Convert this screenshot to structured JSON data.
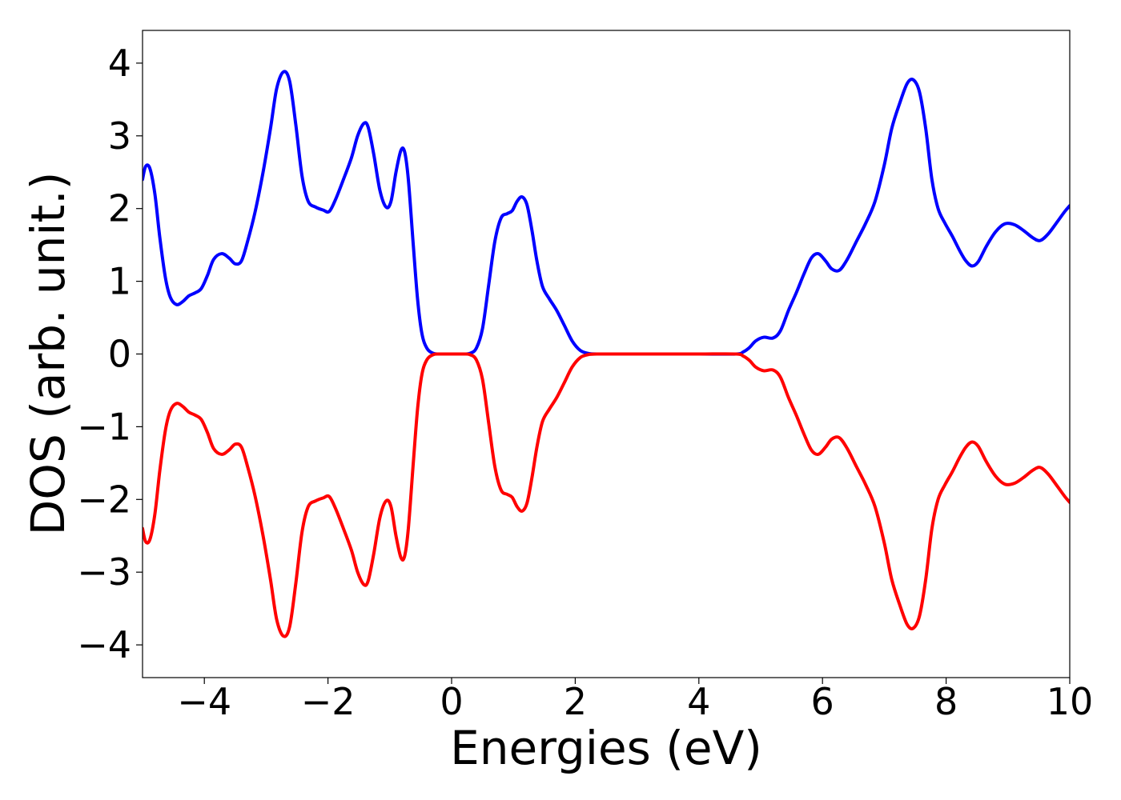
{
  "chart_data": {
    "type": "line",
    "title": "",
    "xlabel": "Energies (eV)",
    "ylabel": "DOS (arb. unit.)",
    "xlim": [
      -5,
      10
    ],
    "ylim": [
      -4.45,
      4.45
    ],
    "grid": false,
    "legend": "none",
    "x_ticks": [
      {
        "value": -4,
        "label": "−4"
      },
      {
        "value": -2,
        "label": "−2"
      },
      {
        "value": 0,
        "label": "0"
      },
      {
        "value": 2,
        "label": "2"
      },
      {
        "value": 4,
        "label": "4"
      },
      {
        "value": 6,
        "label": "6"
      },
      {
        "value": 8,
        "label": "8"
      },
      {
        "value": 10,
        "label": "10"
      }
    ],
    "y_ticks": [
      {
        "value": 4,
        "label": "4"
      },
      {
        "value": 3,
        "label": "3"
      },
      {
        "value": 2,
        "label": "2"
      },
      {
        "value": 1,
        "label": "1"
      },
      {
        "value": 0,
        "label": "0"
      },
      {
        "value": -1,
        "label": "−1"
      },
      {
        "value": -2,
        "label": "−2"
      },
      {
        "value": -3,
        "label": "−3"
      },
      {
        "value": -4,
        "label": "−4"
      }
    ],
    "series": [
      {
        "color": "#0000ff",
        "points": [
          [
            -5.0,
            2.4
          ],
          [
            -4.95,
            2.58
          ],
          [
            -4.88,
            2.55
          ],
          [
            -4.8,
            2.2
          ],
          [
            -4.72,
            1.6
          ],
          [
            -4.63,
            1.05
          ],
          [
            -4.55,
            0.78
          ],
          [
            -4.45,
            0.68
          ],
          [
            -4.35,
            0.72
          ],
          [
            -4.25,
            0.8
          ],
          [
            -4.15,
            0.84
          ],
          [
            -4.05,
            0.9
          ],
          [
            -3.95,
            1.08
          ],
          [
            -3.85,
            1.3
          ],
          [
            -3.72,
            1.38
          ],
          [
            -3.6,
            1.32
          ],
          [
            -3.5,
            1.24
          ],
          [
            -3.4,
            1.28
          ],
          [
            -3.3,
            1.55
          ],
          [
            -3.18,
            1.95
          ],
          [
            -3.05,
            2.5
          ],
          [
            -2.93,
            3.1
          ],
          [
            -2.83,
            3.65
          ],
          [
            -2.72,
            3.88
          ],
          [
            -2.62,
            3.75
          ],
          [
            -2.52,
            3.15
          ],
          [
            -2.42,
            2.45
          ],
          [
            -2.32,
            2.1
          ],
          [
            -2.2,
            2.02
          ],
          [
            -2.08,
            1.98
          ],
          [
            -1.98,
            1.96
          ],
          [
            -1.88,
            2.12
          ],
          [
            -1.75,
            2.4
          ],
          [
            -1.62,
            2.7
          ],
          [
            -1.52,
            3.0
          ],
          [
            -1.42,
            3.17
          ],
          [
            -1.35,
            3.12
          ],
          [
            -1.26,
            2.75
          ],
          [
            -1.16,
            2.25
          ],
          [
            -1.06,
            2.02
          ],
          [
            -0.98,
            2.1
          ],
          [
            -0.9,
            2.5
          ],
          [
            -0.82,
            2.8
          ],
          [
            -0.76,
            2.78
          ],
          [
            -0.7,
            2.4
          ],
          [
            -0.62,
            1.5
          ],
          [
            -0.55,
            0.75
          ],
          [
            -0.48,
            0.28
          ],
          [
            -0.4,
            0.08
          ],
          [
            -0.3,
            0.01
          ],
          [
            -0.2,
            0.0
          ],
          [
            0.0,
            0.0
          ],
          [
            0.2,
            0.0
          ],
          [
            0.3,
            0.01
          ],
          [
            0.4,
            0.08
          ],
          [
            0.5,
            0.35
          ],
          [
            0.6,
            0.95
          ],
          [
            0.7,
            1.55
          ],
          [
            0.8,
            1.87
          ],
          [
            0.9,
            1.93
          ],
          [
            0.98,
            1.97
          ],
          [
            1.06,
            2.1
          ],
          [
            1.14,
            2.16
          ],
          [
            1.22,
            2.05
          ],
          [
            1.3,
            1.7
          ],
          [
            1.38,
            1.28
          ],
          [
            1.47,
            0.93
          ],
          [
            1.58,
            0.76
          ],
          [
            1.7,
            0.6
          ],
          [
            1.82,
            0.4
          ],
          [
            1.95,
            0.18
          ],
          [
            2.08,
            0.05
          ],
          [
            2.2,
            0.01
          ],
          [
            2.35,
            0.0
          ],
          [
            3.0,
            0.0
          ],
          [
            4.0,
            0.0
          ],
          [
            4.6,
            0.0
          ],
          [
            4.72,
            0.03
          ],
          [
            4.82,
            0.09
          ],
          [
            4.92,
            0.18
          ],
          [
            5.05,
            0.23
          ],
          [
            5.2,
            0.22
          ],
          [
            5.32,
            0.32
          ],
          [
            5.45,
            0.6
          ],
          [
            5.58,
            0.85
          ],
          [
            5.7,
            1.1
          ],
          [
            5.82,
            1.32
          ],
          [
            5.93,
            1.38
          ],
          [
            6.05,
            1.28
          ],
          [
            6.15,
            1.17
          ],
          [
            6.27,
            1.15
          ],
          [
            6.4,
            1.3
          ],
          [
            6.55,
            1.55
          ],
          [
            6.7,
            1.8
          ],
          [
            6.85,
            2.1
          ],
          [
            7.0,
            2.6
          ],
          [
            7.12,
            3.1
          ],
          [
            7.25,
            3.45
          ],
          [
            7.37,
            3.72
          ],
          [
            7.47,
            3.77
          ],
          [
            7.57,
            3.6
          ],
          [
            7.67,
            3.1
          ],
          [
            7.77,
            2.4
          ],
          [
            7.87,
            2.0
          ],
          [
            7.98,
            1.8
          ],
          [
            8.1,
            1.62
          ],
          [
            8.22,
            1.42
          ],
          [
            8.32,
            1.28
          ],
          [
            8.42,
            1.21
          ],
          [
            8.52,
            1.27
          ],
          [
            8.65,
            1.48
          ],
          [
            8.8,
            1.68
          ],
          [
            8.95,
            1.79
          ],
          [
            9.1,
            1.78
          ],
          [
            9.25,
            1.7
          ],
          [
            9.4,
            1.6
          ],
          [
            9.52,
            1.56
          ],
          [
            9.65,
            1.65
          ],
          [
            9.8,
            1.82
          ],
          [
            9.92,
            1.96
          ],
          [
            10.0,
            2.04
          ]
        ]
      },
      {
        "color": "#ff0000",
        "points": [
          [
            -5.0,
            -2.4
          ],
          [
            -4.95,
            -2.58
          ],
          [
            -4.88,
            -2.55
          ],
          [
            -4.8,
            -2.2
          ],
          [
            -4.72,
            -1.6
          ],
          [
            -4.63,
            -1.05
          ],
          [
            -4.55,
            -0.78
          ],
          [
            -4.45,
            -0.68
          ],
          [
            -4.35,
            -0.72
          ],
          [
            -4.25,
            -0.8
          ],
          [
            -4.15,
            -0.84
          ],
          [
            -4.05,
            -0.9
          ],
          [
            -3.95,
            -1.08
          ],
          [
            -3.85,
            -1.3
          ],
          [
            -3.72,
            -1.38
          ],
          [
            -3.6,
            -1.32
          ],
          [
            -3.5,
            -1.24
          ],
          [
            -3.4,
            -1.28
          ],
          [
            -3.3,
            -1.55
          ],
          [
            -3.18,
            -1.95
          ],
          [
            -3.05,
            -2.5
          ],
          [
            -2.93,
            -3.1
          ],
          [
            -2.83,
            -3.65
          ],
          [
            -2.72,
            -3.88
          ],
          [
            -2.62,
            -3.75
          ],
          [
            -2.52,
            -3.15
          ],
          [
            -2.42,
            -2.45
          ],
          [
            -2.32,
            -2.1
          ],
          [
            -2.2,
            -2.02
          ],
          [
            -2.08,
            -1.98
          ],
          [
            -1.98,
            -1.96
          ],
          [
            -1.88,
            -2.12
          ],
          [
            -1.75,
            -2.4
          ],
          [
            -1.62,
            -2.7
          ],
          [
            -1.52,
            -3.0
          ],
          [
            -1.42,
            -3.17
          ],
          [
            -1.35,
            -3.12
          ],
          [
            -1.26,
            -2.75
          ],
          [
            -1.16,
            -2.25
          ],
          [
            -1.06,
            -2.02
          ],
          [
            -0.98,
            -2.1
          ],
          [
            -0.9,
            -2.5
          ],
          [
            -0.82,
            -2.8
          ],
          [
            -0.76,
            -2.78
          ],
          [
            -0.7,
            -2.4
          ],
          [
            -0.62,
            -1.5
          ],
          [
            -0.55,
            -0.75
          ],
          [
            -0.48,
            -0.28
          ],
          [
            -0.4,
            -0.08
          ],
          [
            -0.3,
            -0.01
          ],
          [
            -0.2,
            0.0
          ],
          [
            0.0,
            0.0
          ],
          [
            0.2,
            0.0
          ],
          [
            0.3,
            -0.01
          ],
          [
            0.4,
            -0.08
          ],
          [
            0.5,
            -0.35
          ],
          [
            0.6,
            -0.95
          ],
          [
            0.7,
            -1.55
          ],
          [
            0.8,
            -1.87
          ],
          [
            0.9,
            -1.93
          ],
          [
            0.98,
            -1.97
          ],
          [
            1.06,
            -2.1
          ],
          [
            1.14,
            -2.16
          ],
          [
            1.22,
            -2.05
          ],
          [
            1.3,
            -1.7
          ],
          [
            1.38,
            -1.28
          ],
          [
            1.47,
            -0.93
          ],
          [
            1.58,
            -0.76
          ],
          [
            1.7,
            -0.6
          ],
          [
            1.82,
            -0.4
          ],
          [
            1.95,
            -0.18
          ],
          [
            2.08,
            -0.05
          ],
          [
            2.2,
            -0.01
          ],
          [
            2.35,
            0.0
          ],
          [
            3.0,
            0.0
          ],
          [
            4.0,
            0.0
          ],
          [
            4.6,
            0.0
          ],
          [
            4.72,
            -0.03
          ],
          [
            4.82,
            -0.09
          ],
          [
            4.92,
            -0.18
          ],
          [
            5.05,
            -0.23
          ],
          [
            5.2,
            -0.22
          ],
          [
            5.32,
            -0.32
          ],
          [
            5.45,
            -0.6
          ],
          [
            5.58,
            -0.85
          ],
          [
            5.7,
            -1.1
          ],
          [
            5.82,
            -1.32
          ],
          [
            5.93,
            -1.38
          ],
          [
            6.05,
            -1.28
          ],
          [
            6.15,
            -1.17
          ],
          [
            6.27,
            -1.15
          ],
          [
            6.4,
            -1.3
          ],
          [
            6.55,
            -1.55
          ],
          [
            6.7,
            -1.8
          ],
          [
            6.85,
            -2.1
          ],
          [
            7.0,
            -2.6
          ],
          [
            7.12,
            -3.1
          ],
          [
            7.25,
            -3.45
          ],
          [
            7.37,
            -3.72
          ],
          [
            7.47,
            -3.77
          ],
          [
            7.57,
            -3.6
          ],
          [
            7.67,
            -3.1
          ],
          [
            7.77,
            -2.4
          ],
          [
            7.87,
            -2.0
          ],
          [
            7.98,
            -1.8
          ],
          [
            8.1,
            -1.62
          ],
          [
            8.22,
            -1.42
          ],
          [
            8.32,
            -1.28
          ],
          [
            8.42,
            -1.21
          ],
          [
            8.52,
            -1.27
          ],
          [
            8.65,
            -1.48
          ],
          [
            8.8,
            -1.68
          ],
          [
            8.95,
            -1.79
          ],
          [
            9.1,
            -1.78
          ],
          [
            9.25,
            -1.7
          ],
          [
            9.4,
            -1.6
          ],
          [
            9.52,
            -1.56
          ],
          [
            9.65,
            -1.65
          ],
          [
            9.8,
            -1.82
          ],
          [
            9.92,
            -1.96
          ],
          [
            10.0,
            -2.04
          ]
        ]
      }
    ]
  }
}
